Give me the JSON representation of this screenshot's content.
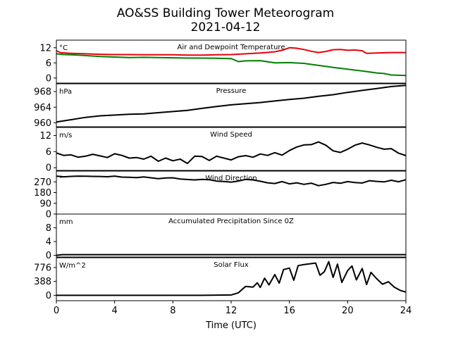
{
  "figure": {
    "title_line1": "AO&SS Building Tower Meteorogram",
    "title_line2": "2021-04-12",
    "xlabel": "Time (UTC)"
  },
  "chart_data": [
    {
      "type": "line",
      "title": "Air and Dewpoint Temperature",
      "unit": "°C",
      "ylim": [
        -2,
        15
      ],
      "yticks": [
        0,
        6,
        12
      ],
      "series": [
        {
          "color": "#e8000b",
          "x": [
            0,
            0.3,
            1,
            2,
            3,
            4,
            5,
            6,
            7,
            8,
            9,
            10,
            11,
            12,
            13,
            14,
            15,
            15.5,
            16,
            16.5,
            17,
            17.5,
            18,
            18.5,
            19,
            19.5,
            20,
            20.5,
            21,
            21.3,
            22,
            23,
            24
          ],
          "y": [
            10.8,
            10,
            9.8,
            9.6,
            9.4,
            9.3,
            9.3,
            9.2,
            9.2,
            9.2,
            9.1,
            9.1,
            9.2,
            9.3,
            9.6,
            9.9,
            10.4,
            11,
            12,
            11.8,
            11.3,
            10.6,
            10.1,
            10.5,
            11.2,
            11.3,
            11,
            11.1,
            10.8,
            9.8,
            9.9,
            10.1,
            10.1
          ]
        },
        {
          "color": "#008000",
          "x": [
            0,
            0.5,
            1,
            2,
            3,
            4,
            5,
            6,
            7,
            8,
            9,
            10,
            11,
            12,
            12.5,
            13,
            14,
            15,
            16,
            17,
            18,
            18.5,
            19,
            20,
            21,
            22,
            22.5,
            23,
            24
          ],
          "y": [
            9.6,
            9.3,
            9.2,
            8.9,
            8.5,
            8.3,
            8.1,
            8.2,
            8.1,
            8.0,
            7.9,
            7.9,
            7.8,
            7.7,
            6.5,
            6.8,
            6.9,
            6.0,
            6.1,
            5.8,
            5.0,
            4.6,
            4.2,
            3.5,
            2.8,
            2.0,
            1.8,
            1.2,
            1.0
          ]
        }
      ]
    },
    {
      "type": "line",
      "title": "Pressure",
      "unit": "hPa",
      "ylim": [
        959,
        970
      ],
      "yticks": [
        960,
        964,
        968
      ],
      "series": [
        {
          "color": "#000000",
          "x": [
            0,
            1,
            2,
            3,
            4,
            5,
            6,
            7,
            8,
            9,
            10,
            11,
            12,
            13,
            14,
            15,
            16,
            17,
            18,
            19,
            20,
            21,
            22,
            23,
            24
          ],
          "y": [
            960.2,
            960.8,
            961.4,
            961.8,
            962.0,
            962.2,
            962.3,
            962.6,
            962.9,
            963.2,
            963.7,
            964.2,
            964.6,
            964.9,
            965.2,
            965.6,
            966.0,
            966.3,
            966.8,
            967.2,
            967.8,
            968.3,
            968.8,
            969.3,
            969.6
          ]
        }
      ]
    },
    {
      "type": "line",
      "title": "Wind Speed",
      "unit": "m/s",
      "ylim": [
        -1,
        15
      ],
      "yticks": [
        0,
        6,
        12
      ],
      "series": [
        {
          "color": "#000000",
          "x": [
            0,
            0.5,
            1,
            1.5,
            2,
            2.5,
            3,
            3.5,
            4,
            4.5,
            5,
            5.5,
            6,
            6.5,
            7,
            7.5,
            8,
            8.5,
            9,
            9.5,
            10,
            10.5,
            11,
            11.5,
            12,
            12.5,
            13,
            13.5,
            14,
            14.5,
            15,
            15.5,
            16,
            16.5,
            17,
            17.5,
            18,
            18.5,
            19,
            19.5,
            20,
            20.5,
            21,
            21.5,
            22,
            22.5,
            23,
            23.5,
            24
          ],
          "y": [
            5.5,
            4.6,
            4.8,
            3.9,
            4.3,
            5.0,
            4.4,
            3.8,
            5.2,
            4.6,
            3.6,
            3.8,
            3.2,
            4.3,
            2.4,
            3.6,
            2.6,
            3.2,
            1.6,
            4.3,
            4.2,
            2.7,
            4.3,
            3.6,
            2.9,
            4.1,
            4.5,
            3.9,
            5.1,
            4.6,
            5.6,
            4.7,
            6.4,
            7.7,
            8.5,
            8.6,
            9.6,
            8.4,
            6.3,
            5.7,
            6.9,
            8.4,
            9.2,
            8.5,
            7.6,
            6.9,
            7.1,
            5.4,
            4.5
          ]
        }
      ]
    },
    {
      "type": "line",
      "title": "Wind Direction",
      "unit": "°",
      "ylim": [
        0,
        360
      ],
      "yticks": [
        0,
        90,
        180,
        270
      ],
      "series": [
        {
          "color": "#000000",
          "x": [
            0,
            0.5,
            1,
            1.5,
            2,
            2.5,
            3,
            3.5,
            4,
            4.5,
            5,
            5.5,
            6,
            6.5,
            7,
            7.5,
            8,
            8.5,
            9,
            9.5,
            10,
            10.5,
            11,
            11.5,
            12,
            12.5,
            13,
            13.5,
            14,
            14.5,
            15,
            15.5,
            16,
            16.5,
            17,
            17.5,
            18,
            18.5,
            19,
            19.5,
            20,
            20.5,
            21,
            21.5,
            22,
            22.5,
            23,
            23.5,
            24
          ],
          "y": [
            318,
            312,
            316,
            318,
            317,
            316,
            315,
            313,
            318,
            310,
            308,
            305,
            311,
            304,
            296,
            302,
            304,
            294,
            290,
            286,
            291,
            288,
            276,
            273,
            268,
            277,
            291,
            286,
            275,
            262,
            256,
            272,
            253,
            262,
            249,
            259,
            238,
            249,
            265,
            258,
            272,
            264,
            260,
            280,
            274,
            270,
            283,
            271,
            288
          ]
        }
      ]
    },
    {
      "type": "line",
      "title": "Accumulated Precipitation Since 0Z",
      "unit": "mm",
      "ylim": [
        -0.5,
        12
      ],
      "yticks": [
        0,
        4,
        8
      ],
      "series": [
        {
          "color": "#000000",
          "x": [
            0,
            0.4,
            24
          ],
          "y": [
            0,
            0.2,
            0.2
          ]
        }
      ]
    },
    {
      "type": "line",
      "title": "Solar Flux",
      "unit": "W/m^2",
      "ylim": [
        -150,
        1050
      ],
      "yticks": [
        0,
        388,
        776
      ],
      "series": [
        {
          "color": "#000000",
          "x": [
            0,
            4,
            8,
            10,
            12,
            12.5,
            12.8,
            13,
            13.5,
            13.8,
            14,
            14.3,
            14.6,
            15,
            15.3,
            15.6,
            16,
            16.3,
            16.6,
            17,
            17.4,
            17.8,
            18.1,
            18.4,
            18.7,
            19,
            19.3,
            19.6,
            20,
            20.3,
            20.6,
            21,
            21.3,
            21.6,
            22,
            22.4,
            22.8,
            23.2,
            23.6,
            24
          ],
          "y": [
            0,
            0,
            0,
            0,
            10,
            70,
            180,
            250,
            230,
            350,
            220,
            480,
            290,
            580,
            340,
            720,
            760,
            420,
            830,
            860,
            880,
            900,
            560,
            660,
            940,
            500,
            870,
            360,
            690,
            820,
            430,
            750,
            300,
            640,
            460,
            310,
            380,
            230,
            140,
            90
          ]
        }
      ]
    }
  ],
  "xaxis": {
    "xlim": [
      0,
      24
    ],
    "ticks": [
      0,
      4,
      8,
      12,
      16,
      20,
      24
    ]
  }
}
